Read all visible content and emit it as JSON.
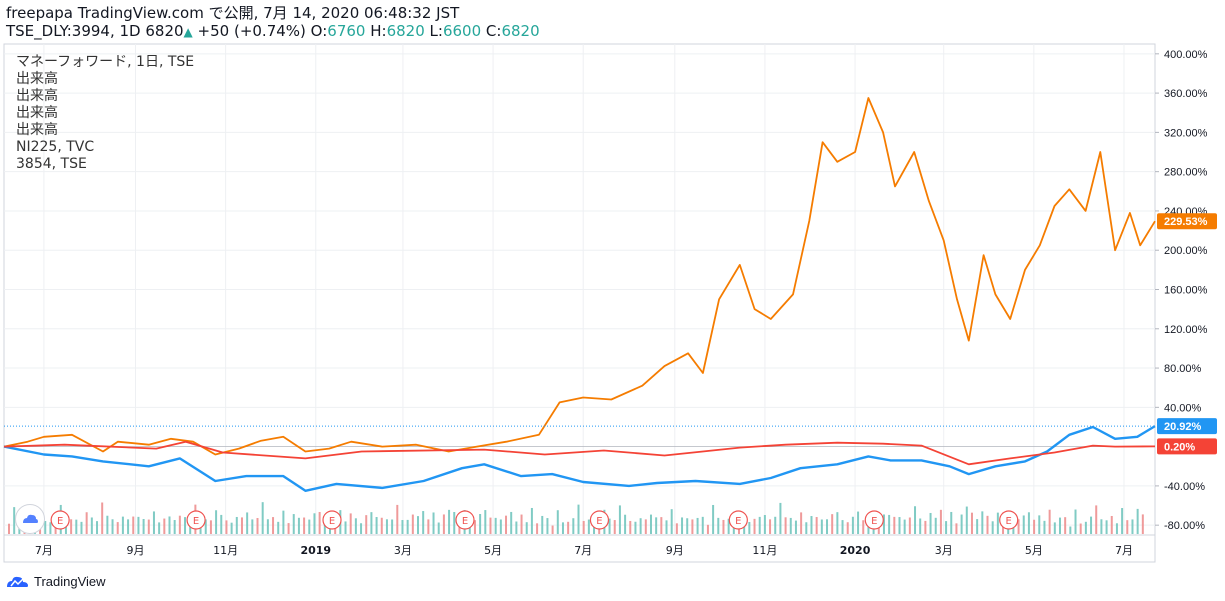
{
  "header": {
    "line1": "freepapa TradingView.com で公開, 7月 14, 2020 06:48:32 JST",
    "symbol": "TSE_DLY:3994, 1D 6820",
    "change": " +50 (+0.74%) ",
    "o_label": "O:",
    "o_value": "6760",
    "h_label": " H:",
    "h_value": "6820",
    "l_label": " L:",
    "l_value": "6600",
    "c_label": " C:",
    "c_value": "6820"
  },
  "legend": [
    "マネーフォワード, 1日, TSE",
    "出来高",
    "出来高",
    "出来高",
    "出来高",
    "NI225, TVC",
    "3854, TSE"
  ],
  "footer": {
    "brand": "TradingView"
  },
  "chart_data": {
    "type": "line",
    "y_unit": "%",
    "ylim": [
      -90,
      410
    ],
    "y_ticks": [
      "400.00%",
      "360.00%",
      "320.00%",
      "280.00%",
      "240.00%",
      "200.00%",
      "160.00%",
      "120.00%",
      "80.00%",
      "40.00%",
      "-40.00%",
      "-80.00%"
    ],
    "y_tick_values": [
      400,
      360,
      320,
      280,
      240,
      200,
      160,
      120,
      80,
      40,
      -40,
      -80
    ],
    "x_ticks": [
      "7月",
      "9月",
      "11月",
      "2019",
      "3月",
      "5月",
      "7月",
      "9月",
      "11月",
      "2020",
      "3月",
      "5月",
      "7月"
    ],
    "x_tick_dates": [
      "2018-07-01",
      "2018-09-01",
      "2018-11-01",
      "2019-01-01",
      "2019-03-01",
      "2019-05-01",
      "2019-07-01",
      "2019-09-01",
      "2019-11-01",
      "2020-01-01",
      "2020-03-01",
      "2020-05-01",
      "2020-07-01"
    ],
    "x_range": [
      "2018-06-04",
      "2020-07-22"
    ],
    "series": [
      {
        "color": "#f57c00",
        "last_label": "229.53%",
        "points": [
          [
            "2018-06-04",
            0
          ],
          [
            "2018-06-20",
            5
          ],
          [
            "2018-07-01",
            10
          ],
          [
            "2018-07-20",
            12
          ],
          [
            "2018-08-10",
            -5
          ],
          [
            "2018-08-20",
            5
          ],
          [
            "2018-09-10",
            2
          ],
          [
            "2018-09-25",
            8
          ],
          [
            "2018-10-10",
            5
          ],
          [
            "2018-10-25",
            -8
          ],
          [
            "2018-11-10",
            -2
          ],
          [
            "2018-11-25",
            6
          ],
          [
            "2018-12-10",
            10
          ],
          [
            "2018-12-25",
            -5
          ],
          [
            "2019-01-10",
            -2
          ],
          [
            "2019-01-25",
            5
          ],
          [
            "2019-02-15",
            0
          ],
          [
            "2019-03-10",
            2
          ],
          [
            "2019-04-01",
            -5
          ],
          [
            "2019-04-20",
            0
          ],
          [
            "2019-05-10",
            5
          ],
          [
            "2019-06-01",
            12
          ],
          [
            "2019-06-15",
            45
          ],
          [
            "2019-07-01",
            50
          ],
          [
            "2019-07-20",
            48
          ],
          [
            "2019-08-10",
            62
          ],
          [
            "2019-08-25",
            82
          ],
          [
            "2019-09-10",
            95
          ],
          [
            "2019-09-20",
            75
          ],
          [
            "2019-10-01",
            150
          ],
          [
            "2019-10-15",
            185
          ],
          [
            "2019-10-25",
            140
          ],
          [
            "2019-11-05",
            130
          ],
          [
            "2019-11-20",
            155
          ],
          [
            "2019-12-01",
            230
          ],
          [
            "2019-12-10",
            310
          ],
          [
            "2019-12-20",
            290
          ],
          [
            "2020-01-01",
            300
          ],
          [
            "2020-01-10",
            355
          ],
          [
            "2020-01-20",
            320
          ],
          [
            "2020-01-28",
            265
          ],
          [
            "2020-02-10",
            300
          ],
          [
            "2020-02-20",
            250
          ],
          [
            "2020-03-01",
            210
          ],
          [
            "2020-03-10",
            150
          ],
          [
            "2020-03-18",
            108
          ],
          [
            "2020-03-28",
            195
          ],
          [
            "2020-04-05",
            155
          ],
          [
            "2020-04-15",
            130
          ],
          [
            "2020-04-25",
            180
          ],
          [
            "2020-05-05",
            205
          ],
          [
            "2020-05-15",
            245
          ],
          [
            "2020-05-25",
            262
          ],
          [
            "2020-06-05",
            240
          ],
          [
            "2020-06-15",
            300
          ],
          [
            "2020-06-25",
            200
          ],
          [
            "2020-07-05",
            238
          ],
          [
            "2020-07-12",
            205
          ],
          [
            "2020-07-22",
            229.53
          ]
        ]
      },
      {
        "color": "#2196f3",
        "last_label": "20.92%",
        "points": [
          [
            "2018-06-04",
            0
          ],
          [
            "2018-07-01",
            -8
          ],
          [
            "2018-07-20",
            -10
          ],
          [
            "2018-08-10",
            -15
          ],
          [
            "2018-09-10",
            -20
          ],
          [
            "2018-10-01",
            -12
          ],
          [
            "2018-10-25",
            -35
          ],
          [
            "2018-11-15",
            -30
          ],
          [
            "2018-12-10",
            -30
          ],
          [
            "2018-12-25",
            -45
          ],
          [
            "2019-01-15",
            -38
          ],
          [
            "2019-02-15",
            -42
          ],
          [
            "2019-03-15",
            -35
          ],
          [
            "2019-04-10",
            -22
          ],
          [
            "2019-04-25",
            -18
          ],
          [
            "2019-05-20",
            -30
          ],
          [
            "2019-06-10",
            -28
          ],
          [
            "2019-07-01",
            -36
          ],
          [
            "2019-08-01",
            -40
          ],
          [
            "2019-08-20",
            -37
          ],
          [
            "2019-09-15",
            -35
          ],
          [
            "2019-10-15",
            -38
          ],
          [
            "2019-11-05",
            -32
          ],
          [
            "2019-11-25",
            -22
          ],
          [
            "2019-12-20",
            -18
          ],
          [
            "2020-01-10",
            -10
          ],
          [
            "2020-01-25",
            -14
          ],
          [
            "2020-02-15",
            -14
          ],
          [
            "2020-03-05",
            -20
          ],
          [
            "2020-03-18",
            -28
          ],
          [
            "2020-04-05",
            -20
          ],
          [
            "2020-04-25",
            -15
          ],
          [
            "2020-05-10",
            -5
          ],
          [
            "2020-05-25",
            12
          ],
          [
            "2020-06-10",
            20
          ],
          [
            "2020-06-25",
            8
          ],
          [
            "2020-07-10",
            10
          ],
          [
            "2020-07-22",
            20.92
          ]
        ]
      },
      {
        "color": "#f44336",
        "last_label": "0.20%",
        "points": [
          [
            "2018-06-04",
            0
          ],
          [
            "2018-07-15",
            2
          ],
          [
            "2018-09-15",
            -2
          ],
          [
            "2018-10-05",
            5
          ],
          [
            "2018-10-30",
            -6
          ],
          [
            "2018-12-25",
            -12
          ],
          [
            "2019-02-01",
            -5
          ],
          [
            "2019-04-25",
            -3
          ],
          [
            "2019-06-05",
            -8
          ],
          [
            "2019-07-15",
            -4
          ],
          [
            "2019-08-25",
            -9
          ],
          [
            "2019-10-15",
            -1
          ],
          [
            "2019-11-15",
            2
          ],
          [
            "2019-12-20",
            4
          ],
          [
            "2020-01-20",
            3
          ],
          [
            "2020-02-15",
            1
          ],
          [
            "2020-03-18",
            -18
          ],
          [
            "2020-04-15",
            -12
          ],
          [
            "2020-05-15",
            -6
          ],
          [
            "2020-06-10",
            1
          ],
          [
            "2020-06-25",
            0
          ],
          [
            "2020-07-22",
            0.2
          ]
        ]
      }
    ],
    "event_markers": {
      "label": "E",
      "dates": [
        "2018-07-12",
        "2018-10-12",
        "2019-01-12",
        "2019-04-12",
        "2019-07-12",
        "2019-10-14",
        "2020-01-14",
        "2020-04-14"
      ]
    },
    "volume_heights": [
      0.3,
      0.55,
      0.25,
      0.4,
      0.35,
      0.2,
      0.5,
      0.3,
      0.25,
      0.45,
      0.6,
      0.35,
      0.3,
      0.4,
      0.25,
      0.55,
      0.35,
      0.3,
      0.7,
      0.4,
      0.35,
      0.25,
      0.45,
      0.3,
      0.5,
      0.35,
      0.4,
      0.3,
      0.55,
      0.25,
      0.35,
      0.4,
      0.3,
      0.45,
      0.35,
      0.25,
      0.6,
      0.4,
      0.3,
      0.35,
      0.5,
      0.45,
      0.3,
      0.25,
      0.4,
      0.35,
      0.55,
      0.3,
      0.45,
      0.65,
      0.4,
      0.35,
      0.3,
      0.5,
      0.25,
      0.45,
      0.35,
      0.4,
      0.3,
      0.55,
      0.45,
      0.35,
      0.25,
      0.4,
      0.5,
      0.3,
      0.45,
      0.35,
      0.25,
      0.4,
      0.55,
      0.35,
      0.45,
      0.3,
      0.4,
      0.6,
      0.35,
      0.3,
      0.45,
      0.4,
      0.5,
      0.35,
      0.45,
      0.3,
      0.4,
      0.7,
      0.45,
      0.35,
      0.5,
      0.4,
      0.3,
      0.45,
      0.55,
      0.35,
      0.4,
      0.3,
      0.5,
      0.45,
      0.35,
      0.4
    ]
  }
}
